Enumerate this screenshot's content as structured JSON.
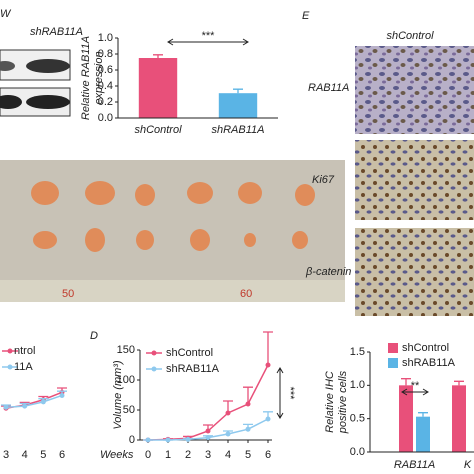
{
  "figure": {
    "panel_labels": [
      "D",
      "E"
    ],
    "blot": {
      "fragment": "W",
      "label": "shRAB11A"
    },
    "tumor_photo": {
      "ruler_labels": [
        "50",
        "60"
      ]
    },
    "ihc": {
      "column": "shControl",
      "rows": [
        "RAB11A",
        "Ki67",
        "β-catenin"
      ]
    }
  },
  "chart_data": [
    {
      "type": "bar",
      "ylabel": [
        "Relative RAB11A",
        "expression"
      ],
      "categories": [
        "shControl",
        "shRAB11A"
      ],
      "values": [
        0.75,
        0.31
      ],
      "errors": [
        0.04,
        0.05
      ],
      "colors": [
        "#e8507a",
        "#5ab4e5"
      ],
      "ylim": [
        0,
        1.0
      ],
      "yticks": [
        {
          "value": 0,
          "label": "0.0"
        },
        0.2,
        0.4,
        0.6,
        0.8,
        {
          "value": 1,
          "label": "1.0"
        }
      ],
      "annotation": "***"
    },
    {
      "type": "line",
      "x": [
        3,
        4,
        5,
        6
      ],
      "xlim": [
        3,
        6
      ],
      "xticks": [
        3,
        4,
        5,
        6
      ],
      "ylim": [
        0,
        150
      ],
      "series": [
        {
          "name": "ntrol",
          "color": "#e8507a",
          "values": [
            22,
            28,
            38,
            52
          ],
          "errors": [
            4,
            5,
            6,
            8
          ]
        },
        {
          "name": "11A",
          "color": "#8ec9ee",
          "values": [
            24,
            26,
            34,
            46
          ],
          "errors": [
            4,
            5,
            6,
            8
          ]
        }
      ]
    },
    {
      "type": "line",
      "xlabel": "Weeks",
      "ylabel": "Volume (mm³)",
      "x": [
        0,
        1,
        2,
        3,
        4,
        5,
        6
      ],
      "xlim": [
        0,
        6
      ],
      "xticks": [
        0,
        1,
        2,
        3,
        4,
        5,
        6
      ],
      "ylim": [
        0,
        150
      ],
      "yticks": [
        0,
        50,
        100,
        150
      ],
      "series": [
        {
          "name": "shControl",
          "color": "#e8507a",
          "values": [
            0,
            1,
            3,
            15,
            45,
            60,
            125
          ],
          "errors": [
            0,
            1,
            3,
            10,
            20,
            28,
            55
          ]
        },
        {
          "name": "shRAB11A",
          "color": "#8ec9ee",
          "values": [
            0,
            0,
            1,
            4,
            10,
            18,
            35
          ],
          "errors": [
            0,
            0,
            1,
            3,
            5,
            8,
            12
          ]
        }
      ],
      "annotation": "***"
    },
    {
      "type": "bar",
      "ylabel": [
        "Relative IHC",
        "positive cells"
      ],
      "categories": [
        "RAB11A",
        "K"
      ],
      "series": [
        {
          "name": "shControl",
          "color": "#e8507a",
          "values": [
            1.0,
            1.0
          ],
          "errors": [
            0.1,
            0.06
          ]
        },
        {
          "name": "shRAB11A",
          "color": "#5ab4e5",
          "values": [
            0.53,
            null
          ],
          "errors": [
            0.06,
            null
          ]
        }
      ],
      "ylim": [
        0,
        1.5
      ],
      "yticks": [
        {
          "value": 0,
          "label": "0.0"
        },
        0.5,
        {
          "value": 1,
          "label": "1.0"
        },
        1.5
      ],
      "annotation": "**"
    }
  ]
}
